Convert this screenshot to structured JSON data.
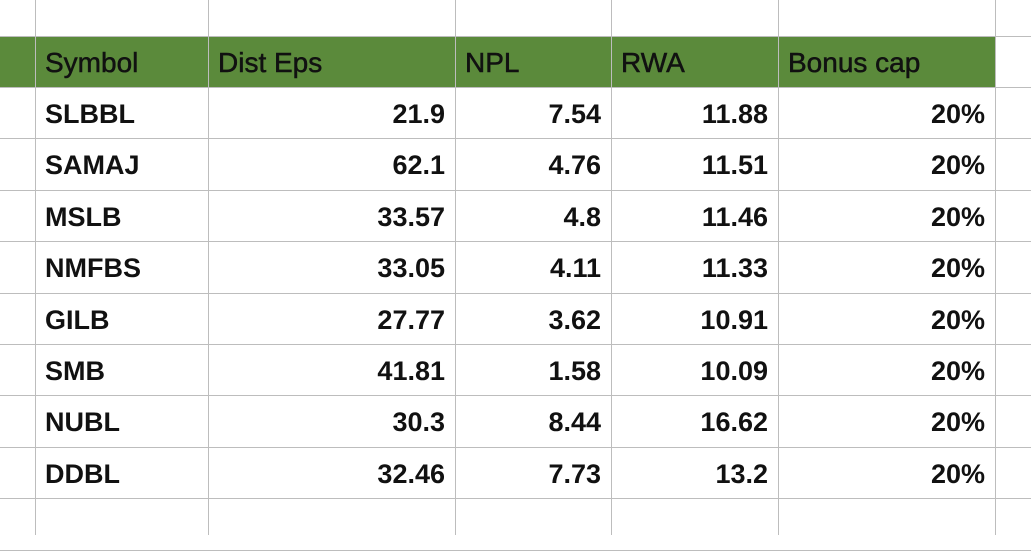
{
  "table": {
    "header": [
      "Symbol",
      "Dist Eps",
      "NPL",
      "RWA",
      "Bonus cap"
    ],
    "rows": [
      [
        "SLBBL",
        "21.9",
        "7.54",
        "11.88",
        "20%"
      ],
      [
        "SAMAJ",
        "62.1",
        "4.76",
        "11.51",
        "20%"
      ],
      [
        "MSLB",
        "33.57",
        "4.8",
        "11.46",
        "20%"
      ],
      [
        "NMFBS",
        "33.05",
        "4.11",
        "11.33",
        "20%"
      ],
      [
        "GILB",
        "27.77",
        "3.62",
        "10.91",
        "20%"
      ],
      [
        "SMB",
        "41.81",
        "1.58",
        "10.09",
        "20%"
      ],
      [
        "NUBL",
        "30.3",
        "8.44",
        "16.62",
        "20%"
      ],
      [
        "DDBL",
        "32.46",
        "7.73",
        "13.2",
        "20%"
      ]
    ]
  }
}
